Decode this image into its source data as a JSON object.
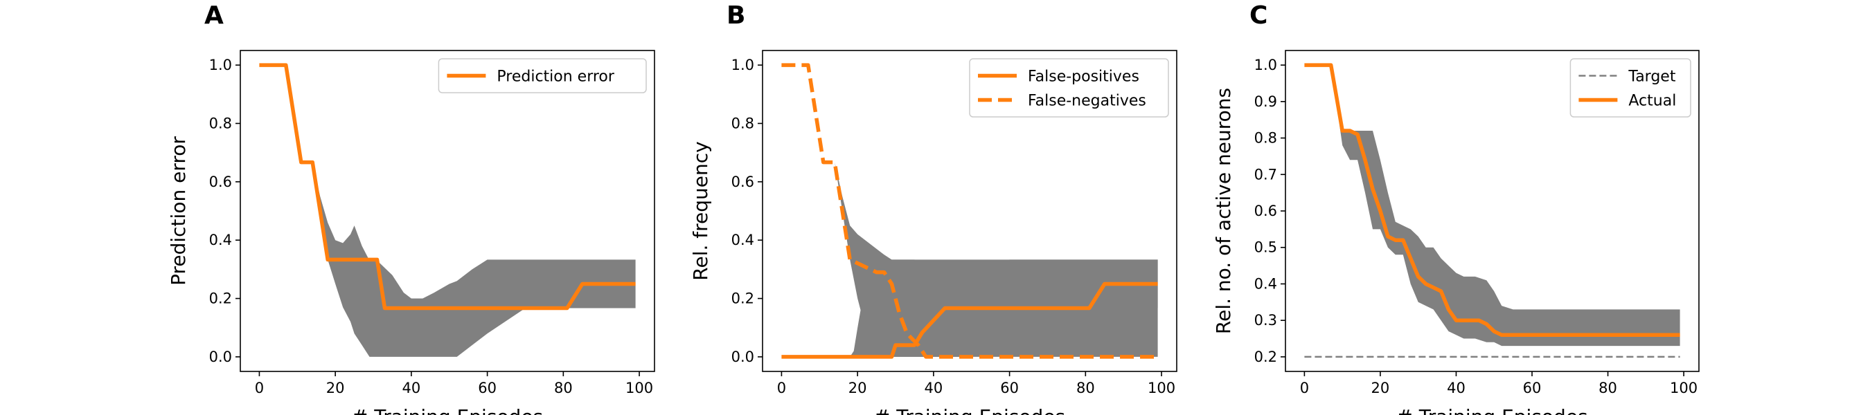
{
  "colors": {
    "orange": "#ff7f0e",
    "band": "#808080",
    "target": "#808080"
  },
  "chart_data": [
    {
      "panel": "A",
      "type": "line",
      "xlabel": "# Training Episodes",
      "ylabel": "Prediction error",
      "xlim": [
        -5,
        104
      ],
      "ylim": [
        -0.05,
        1.05
      ],
      "xticks": [
        0,
        20,
        40,
        60,
        80,
        100
      ],
      "yticks": [
        0.0,
        0.2,
        0.4,
        0.6,
        0.8,
        1.0
      ],
      "ytick_labels": [
        "0.0",
        "0.2",
        "0.4",
        "0.6",
        "0.8",
        "1.0"
      ],
      "legend": "top-right",
      "series": [
        {
          "name": "Prediction error",
          "style": "solid",
          "color": "#ff7f0e",
          "x": [
            0,
            7,
            11,
            14,
            18,
            31,
            33,
            81,
            85,
            99
          ],
          "y": [
            1.0,
            1.0,
            0.667,
            0.667,
            0.333,
            0.333,
            0.167,
            0.167,
            0.25,
            0.25
          ]
        }
      ],
      "bands": [
        {
          "x": [
            14,
            16,
            18,
            20,
            22,
            24,
            25,
            27,
            29,
            31,
            35,
            38,
            40,
            43,
            46,
            50,
            52,
            56,
            60,
            70,
            80,
            90,
            99
          ],
          "lower": [
            0.667,
            0.5,
            0.333,
            0.25,
            0.17,
            0.12,
            0.08,
            0.04,
            0.0,
            0.0,
            0.0,
            0.0,
            0.0,
            0.0,
            0.0,
            0.0,
            0.0,
            0.04,
            0.08,
            0.167,
            0.167,
            0.167,
            0.167
          ],
          "upper": [
            0.667,
            0.55,
            0.46,
            0.4,
            0.39,
            0.42,
            0.45,
            0.38,
            0.33,
            0.33,
            0.28,
            0.22,
            0.2,
            0.2,
            0.22,
            0.25,
            0.26,
            0.3,
            0.333,
            0.333,
            0.333,
            0.333,
            0.333
          ]
        }
      ]
    },
    {
      "panel": "B",
      "type": "line",
      "xlabel": "# Training Episodes",
      "ylabel": "Rel. frequency",
      "xlim": [
        -5,
        104
      ],
      "ylim": [
        -0.05,
        1.05
      ],
      "xticks": [
        0,
        20,
        40,
        60,
        80,
        100
      ],
      "yticks": [
        0.0,
        0.2,
        0.4,
        0.6,
        0.8,
        1.0
      ],
      "ytick_labels": [
        "0.0",
        "0.2",
        "0.4",
        "0.6",
        "0.8",
        "1.0"
      ],
      "legend": "top-right",
      "series": [
        {
          "name": "False-positives",
          "style": "solid",
          "color": "#ff7f0e",
          "x": [
            0,
            29,
            30,
            35,
            37,
            43,
            81,
            85,
            99
          ],
          "y": [
            0.0,
            0.0,
            0.04,
            0.04,
            0.083,
            0.167,
            0.167,
            0.25,
            0.25
          ]
        },
        {
          "name": "False-negatives",
          "style": "dashed",
          "color": "#ff7f0e",
          "x": [
            0,
            7,
            11,
            14,
            18,
            25,
            27,
            29,
            31,
            33,
            36,
            38,
            40,
            99
          ],
          "y": [
            1.0,
            1.0,
            0.667,
            0.667,
            0.333,
            0.29,
            0.29,
            0.25,
            0.15,
            0.08,
            0.04,
            0.0,
            0.0,
            0.0
          ]
        }
      ],
      "bands": [
        {
          "x": [
            14,
            16,
            18,
            20,
            24,
            27,
            29,
            31,
            35,
            38,
            40,
            42,
            45,
            50,
            55,
            60,
            70,
            80,
            90,
            99
          ],
          "lower": [
            0.667,
            0.5,
            0.333,
            0.2,
            0.0,
            0.0,
            0.0,
            0.0,
            0.0,
            0.0,
            0.0,
            0.0,
            0.0,
            0.0,
            0.0,
            0.0,
            0.0,
            0.0,
            0.0,
            0.0
          ],
          "upper": [
            0.667,
            0.55,
            0.45,
            0.42,
            0.38,
            0.35,
            0.333,
            0.333,
            0.333,
            0.25,
            0.2,
            0.167,
            0.167,
            0.2,
            0.25,
            0.333,
            0.333,
            0.333,
            0.333,
            0.333
          ]
        },
        {
          "x": [
            18,
            19,
            20,
            22,
            24,
            26,
            28,
            30,
            32,
            35,
            38,
            42,
            45,
            50,
            55,
            60,
            70,
            80,
            90,
            99
          ],
          "lower": [
            0.0,
            0.0,
            0.0,
            0.0,
            0.0,
            0.0,
            0.0,
            0.0,
            0.0,
            0.0,
            0.0,
            0.0,
            0.0,
            0.0,
            0.04,
            0.083,
            0.167,
            0.167,
            0.167,
            0.167
          ],
          "upper": [
            0.0,
            0.02,
            0.1,
            0.25,
            0.3,
            0.333,
            0.333,
            0.333,
            0.333,
            0.333,
            0.333,
            0.333,
            0.333,
            0.333,
            0.333,
            0.333,
            0.333,
            0.333,
            0.333,
            0.333
          ]
        }
      ]
    },
    {
      "panel": "C",
      "type": "line",
      "xlabel": "# Training Episodes",
      "ylabel": "Rel. no. of active neurons",
      "xlim": [
        -5,
        104
      ],
      "ylim": [
        0.16,
        1.04
      ],
      "xticks": [
        0,
        20,
        40,
        60,
        80,
        100
      ],
      "yticks": [
        0.2,
        0.3,
        0.4,
        0.5,
        0.6,
        0.7,
        0.8,
        0.9,
        1.0
      ],
      "ytick_labels": [
        "0.2",
        "0.3",
        "0.4",
        "0.5",
        "0.6",
        "0.7",
        "0.8",
        "0.9",
        "1.0"
      ],
      "legend": "top-right",
      "series": [
        {
          "name": "Target",
          "style": "dashed-thin",
          "color": "#808080",
          "x": [
            0,
            99
          ],
          "y": [
            0.2,
            0.2
          ]
        },
        {
          "name": "Actual",
          "style": "solid",
          "color": "#ff7f0e",
          "x": [
            0,
            7,
            10,
            12,
            14,
            16,
            18,
            20,
            22,
            24,
            26,
            28,
            30,
            32,
            34,
            36,
            38,
            40,
            42,
            44,
            46,
            48,
            50,
            52,
            54,
            56,
            58,
            60,
            70,
            80,
            90,
            99
          ],
          "y": [
            1.0,
            1.0,
            0.82,
            0.82,
            0.81,
            0.74,
            0.66,
            0.6,
            0.53,
            0.52,
            0.52,
            0.47,
            0.42,
            0.4,
            0.39,
            0.38,
            0.33,
            0.3,
            0.3,
            0.3,
            0.3,
            0.29,
            0.27,
            0.26,
            0.26,
            0.26,
            0.26,
            0.26,
            0.26,
            0.26,
            0.26,
            0.26
          ]
        }
      ],
      "bands": [
        {
          "x": [
            7,
            10,
            12,
            14,
            16,
            18,
            20,
            22,
            24,
            26,
            28,
            30,
            32,
            34,
            36,
            38,
            40,
            42,
            45,
            48,
            50,
            52,
            55,
            60,
            70,
            80,
            90,
            99
          ],
          "lower": [
            1.0,
            0.78,
            0.74,
            0.74,
            0.65,
            0.55,
            0.55,
            0.5,
            0.48,
            0.48,
            0.4,
            0.35,
            0.34,
            0.33,
            0.3,
            0.27,
            0.26,
            0.25,
            0.25,
            0.24,
            0.24,
            0.23,
            0.23,
            0.23,
            0.23,
            0.23,
            0.23,
            0.23
          ],
          "upper": [
            1.0,
            0.82,
            0.82,
            0.82,
            0.82,
            0.82,
            0.74,
            0.65,
            0.57,
            0.56,
            0.55,
            0.53,
            0.5,
            0.5,
            0.47,
            0.45,
            0.43,
            0.42,
            0.42,
            0.41,
            0.38,
            0.34,
            0.33,
            0.33,
            0.33,
            0.33,
            0.33,
            0.33
          ]
        }
      ]
    }
  ]
}
